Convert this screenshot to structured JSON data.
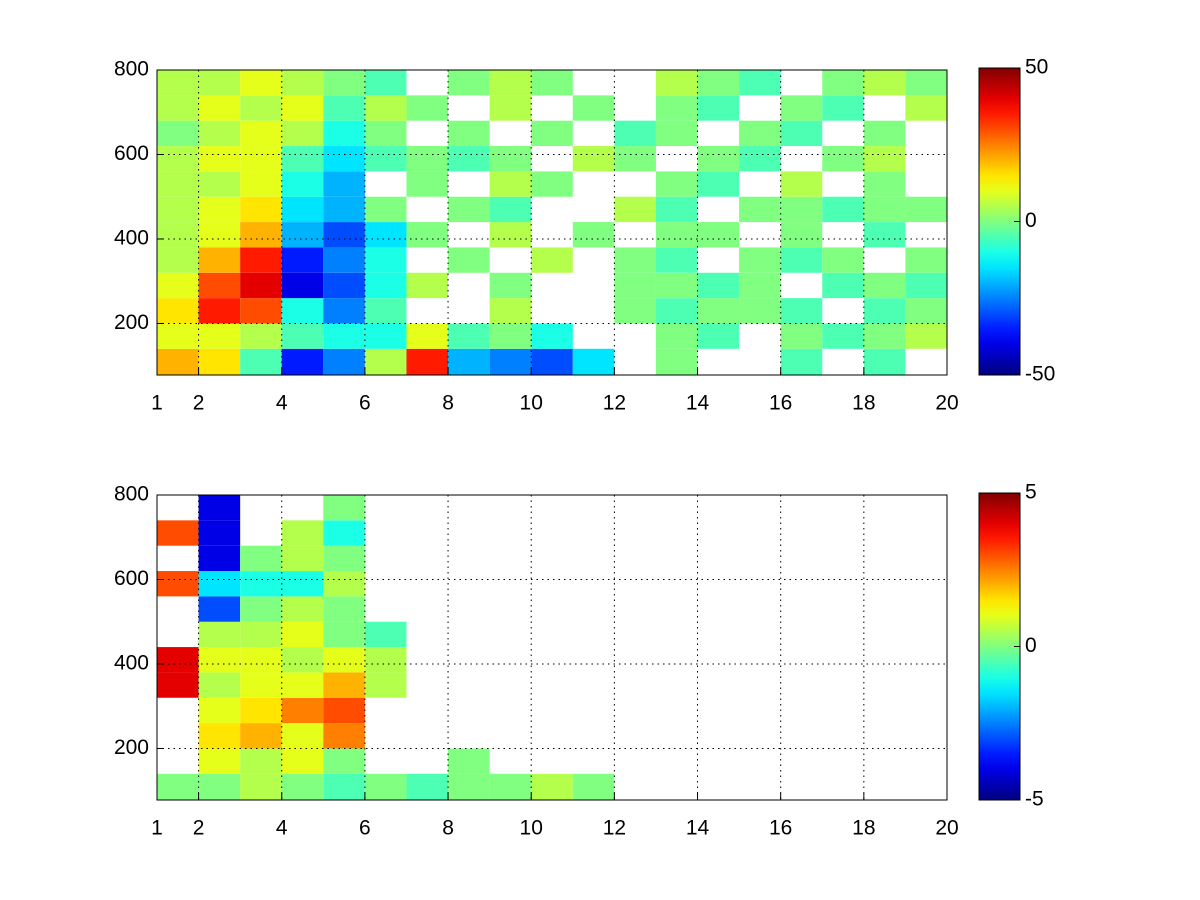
{
  "chart_data": [
    {
      "type": "heatmap",
      "colormap": "jet",
      "grid": true,
      "x_edges": [
        1,
        2,
        3,
        4,
        5,
        6,
        7,
        8,
        9,
        10,
        11,
        12,
        13,
        14,
        15,
        16,
        17,
        18,
        19,
        20
      ],
      "y_edges": [
        78,
        140,
        200,
        260,
        320,
        380,
        440,
        500,
        560,
        620,
        680,
        740,
        800
      ],
      "z": [
        [
          20,
          15,
          -5,
          -35,
          -25,
          5,
          35,
          -20,
          -25,
          -30,
          -15,
          null,
          0,
          null,
          null,
          -5,
          null,
          -5,
          null
        ],
        [
          10,
          10,
          5,
          -5,
          -10,
          -10,
          10,
          -5,
          0,
          -10,
          null,
          null,
          0,
          -5,
          null,
          0,
          -5,
          0,
          5
        ],
        [
          15,
          35,
          30,
          -10,
          -25,
          -5,
          null,
          null,
          5,
          null,
          null,
          0,
          -5,
          0,
          0,
          -5,
          null,
          -5,
          0
        ],
        [
          10,
          30,
          40,
          -40,
          -30,
          -10,
          5,
          null,
          0,
          null,
          null,
          0,
          0,
          -5,
          0,
          null,
          -5,
          0,
          -5
        ],
        [
          5,
          20,
          35,
          -35,
          -25,
          -10,
          null,
          0,
          null,
          5,
          null,
          0,
          -5,
          null,
          0,
          -5,
          0,
          null,
          0
        ],
        [
          5,
          10,
          20,
          -20,
          -30,
          -15,
          0,
          null,
          5,
          null,
          0,
          null,
          0,
          0,
          null,
          0,
          null,
          -5,
          null
        ],
        [
          5,
          10,
          15,
          -15,
          -20,
          0,
          null,
          0,
          -5,
          null,
          null,
          5,
          -5,
          null,
          0,
          0,
          -5,
          0,
          0
        ],
        [
          5,
          5,
          10,
          -10,
          -20,
          null,
          0,
          null,
          5,
          0,
          null,
          null,
          0,
          -5,
          null,
          5,
          null,
          0,
          null
        ],
        [
          5,
          10,
          10,
          -5,
          -15,
          -5,
          0,
          -5,
          0,
          null,
          5,
          0,
          null,
          0,
          -5,
          null,
          0,
          5,
          null
        ],
        [
          0,
          5,
          10,
          5,
          -10,
          0,
          null,
          0,
          null,
          0,
          null,
          -5,
          0,
          null,
          0,
          -5,
          null,
          0,
          null
        ],
        [
          5,
          10,
          5,
          10,
          -5,
          5,
          0,
          null,
          5,
          null,
          0,
          null,
          0,
          -5,
          null,
          0,
          -5,
          null,
          5
        ],
        [
          5,
          5,
          10,
          5,
          0,
          -5,
          null,
          0,
          5,
          0,
          null,
          null,
          5,
          0,
          -5,
          null,
          0,
          5,
          0
        ]
      ],
      "xlim": [
        1,
        20
      ],
      "ylim": [
        78,
        800
      ],
      "xticks": [
        1,
        2,
        4,
        6,
        8,
        10,
        12,
        14,
        16,
        18,
        20
      ],
      "yticks": [
        200,
        400,
        600,
        800
      ],
      "clim": [
        -50,
        50
      ],
      "cticks": [
        -50,
        0,
        50
      ]
    },
    {
      "type": "heatmap",
      "colormap": "jet",
      "grid": true,
      "x_edges": [
        1,
        2,
        3,
        4,
        5,
        6,
        7,
        8,
        9,
        10,
        11,
        12,
        13,
        14,
        15,
        16,
        17,
        18,
        19,
        20
      ],
      "y_edges": [
        78,
        140,
        200,
        260,
        320,
        380,
        440,
        500,
        560,
        620,
        680,
        740,
        800
      ],
      "z": [
        [
          0,
          0,
          0.5,
          0,
          -0.5,
          0,
          -0.5,
          0,
          0,
          0.5,
          0,
          null,
          null,
          null,
          null,
          null,
          null,
          null,
          null
        ],
        [
          null,
          1,
          0.5,
          1,
          0,
          null,
          null,
          0,
          null,
          null,
          null,
          null,
          null,
          null,
          null,
          null,
          null,
          null,
          null
        ],
        [
          null,
          1.5,
          2,
          1,
          2.5,
          null,
          null,
          null,
          null,
          null,
          null,
          null,
          null,
          null,
          null,
          null,
          null,
          null,
          null
        ],
        [
          null,
          1,
          1.5,
          2.5,
          3,
          null,
          null,
          null,
          null,
          null,
          null,
          null,
          null,
          null,
          null,
          null,
          null,
          null,
          null
        ],
        [
          4,
          0.5,
          1,
          1,
          2,
          0.5,
          null,
          null,
          null,
          null,
          null,
          null,
          null,
          null,
          null,
          null,
          null,
          null,
          null
        ],
        [
          4,
          1,
          1,
          0.5,
          1,
          0.5,
          null,
          null,
          null,
          null,
          null,
          null,
          null,
          null,
          null,
          null,
          null,
          null,
          null
        ],
        [
          null,
          0.5,
          0.5,
          1,
          0,
          -0.5,
          null,
          null,
          null,
          null,
          null,
          null,
          null,
          null,
          null,
          null,
          null,
          null,
          null
        ],
        [
          null,
          -3,
          0,
          0.5,
          0,
          null,
          null,
          null,
          null,
          null,
          null,
          null,
          null,
          null,
          null,
          null,
          null,
          null,
          null
        ],
        [
          3,
          -1.5,
          -1,
          -1,
          0.5,
          null,
          null,
          null,
          null,
          null,
          null,
          null,
          null,
          null,
          null,
          null,
          null,
          null,
          null
        ],
        [
          null,
          -4,
          0,
          0.5,
          0,
          null,
          null,
          null,
          null,
          null,
          null,
          null,
          null,
          null,
          null,
          null,
          null,
          null,
          null
        ],
        [
          3,
          -4,
          null,
          0.5,
          -1,
          null,
          null,
          null,
          null,
          null,
          null,
          null,
          null,
          null,
          null,
          null,
          null,
          null,
          null
        ],
        [
          null,
          -4,
          null,
          null,
          0,
          null,
          null,
          null,
          null,
          null,
          null,
          null,
          null,
          null,
          null,
          null,
          null,
          null,
          null
        ]
      ],
      "xlim": [
        1,
        20
      ],
      "ylim": [
        78,
        800
      ],
      "xticks": [
        1,
        2,
        4,
        6,
        8,
        10,
        12,
        14,
        16,
        18,
        20
      ],
      "yticks": [
        200,
        400,
        600,
        800
      ],
      "clim": [
        -5,
        5
      ],
      "cticks": [
        -5,
        0,
        5
      ]
    }
  ]
}
